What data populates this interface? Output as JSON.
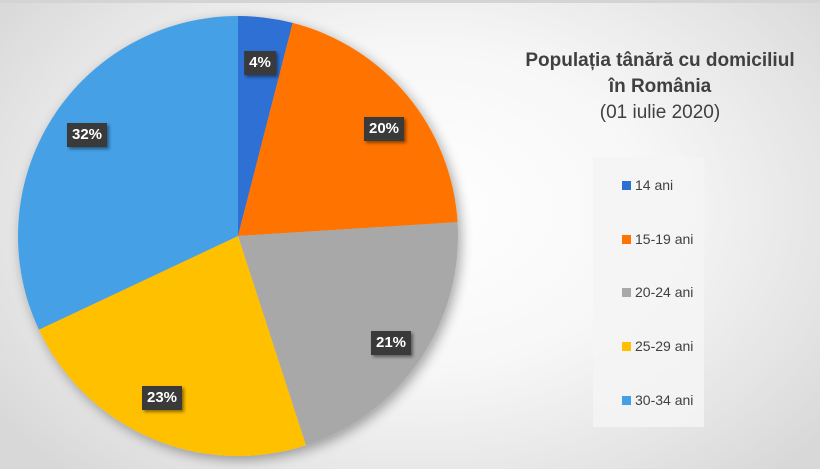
{
  "title": {
    "line1": "Populația tânără cu domiciliul",
    "line2": "în România",
    "line3": "(01 iulie 2020)"
  },
  "legend": {
    "items": [
      {
        "label": "14 ani",
        "color": "#2E6FD4"
      },
      {
        "label": "15-19 ani",
        "color": "#FF7300"
      },
      {
        "label": "20-24 ani",
        "color": "#A8A8A8"
      },
      {
        "label": "25-29 ani",
        "color": "#FFC000"
      },
      {
        "label": "30-34 ani",
        "color": "#44A0E6"
      }
    ]
  },
  "labels": [
    "4%",
    "20%",
    "21%",
    "23%",
    "32%"
  ],
  "chart_data": {
    "type": "pie",
    "title": "Populația tânără cu domiciliul în România (01 iulie 2020)",
    "categories": [
      "14 ani",
      "15-19 ani",
      "20-24 ani",
      "25-29 ani",
      "30-34 ani"
    ],
    "values": [
      4,
      20,
      21,
      23,
      32
    ],
    "unit": "%",
    "colors": [
      "#2E6FD4",
      "#FF7300",
      "#A8A8A8",
      "#FFC000",
      "#44A0E6"
    ],
    "start_angle_deg": 0,
    "direction": "clockwise",
    "legend_position": "right",
    "data_labels": [
      "4%",
      "20%",
      "21%",
      "23%",
      "32%"
    ]
  }
}
